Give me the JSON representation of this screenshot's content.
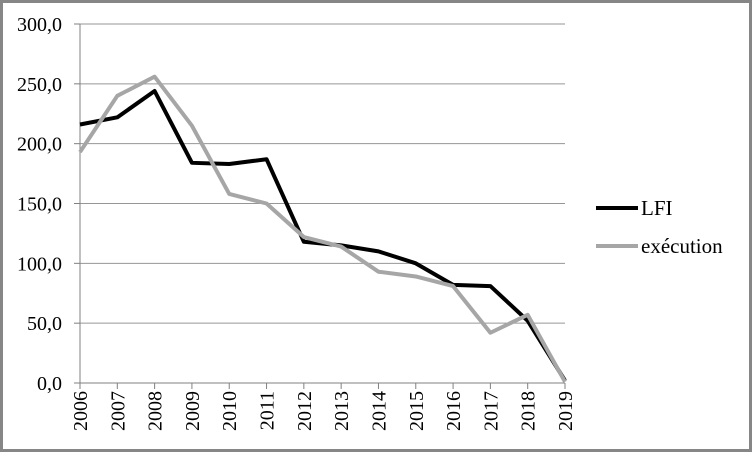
{
  "figure": {
    "background": "#ffffff",
    "border_color": "#868686"
  },
  "chart_data": {
    "type": "line",
    "title": "",
    "xlabel": "",
    "ylabel": "",
    "categories": [
      "2006",
      "2007",
      "2008",
      "2009",
      "2010",
      "2011",
      "2012",
      "2013",
      "2014",
      "2015",
      "2016",
      "2017",
      "2018",
      "2019"
    ],
    "series": [
      {
        "name": "LFI",
        "color": "#000000",
        "values": [
          216,
          222,
          244,
          184,
          183,
          187,
          118,
          115,
          110,
          100,
          82,
          81,
          52,
          2
        ]
      },
      {
        "name": "exécution",
        "color": "#a6a6a6",
        "values": [
          193,
          240,
          256,
          215,
          158,
          150,
          122,
          114,
          93,
          89,
          81,
          42,
          57,
          1
        ]
      }
    ],
    "ylim": [
      0,
      300
    ],
    "ytick_step": 50,
    "ytick_labels": [
      "0,0",
      "50,0",
      "100,0",
      "150,0",
      "200,0",
      "250,0",
      "300,0"
    ],
    "grid": true,
    "legend_position": "right",
    "gridline_color": "#969696",
    "axis_color": "#808080",
    "tick_label_color": "#000000"
  }
}
